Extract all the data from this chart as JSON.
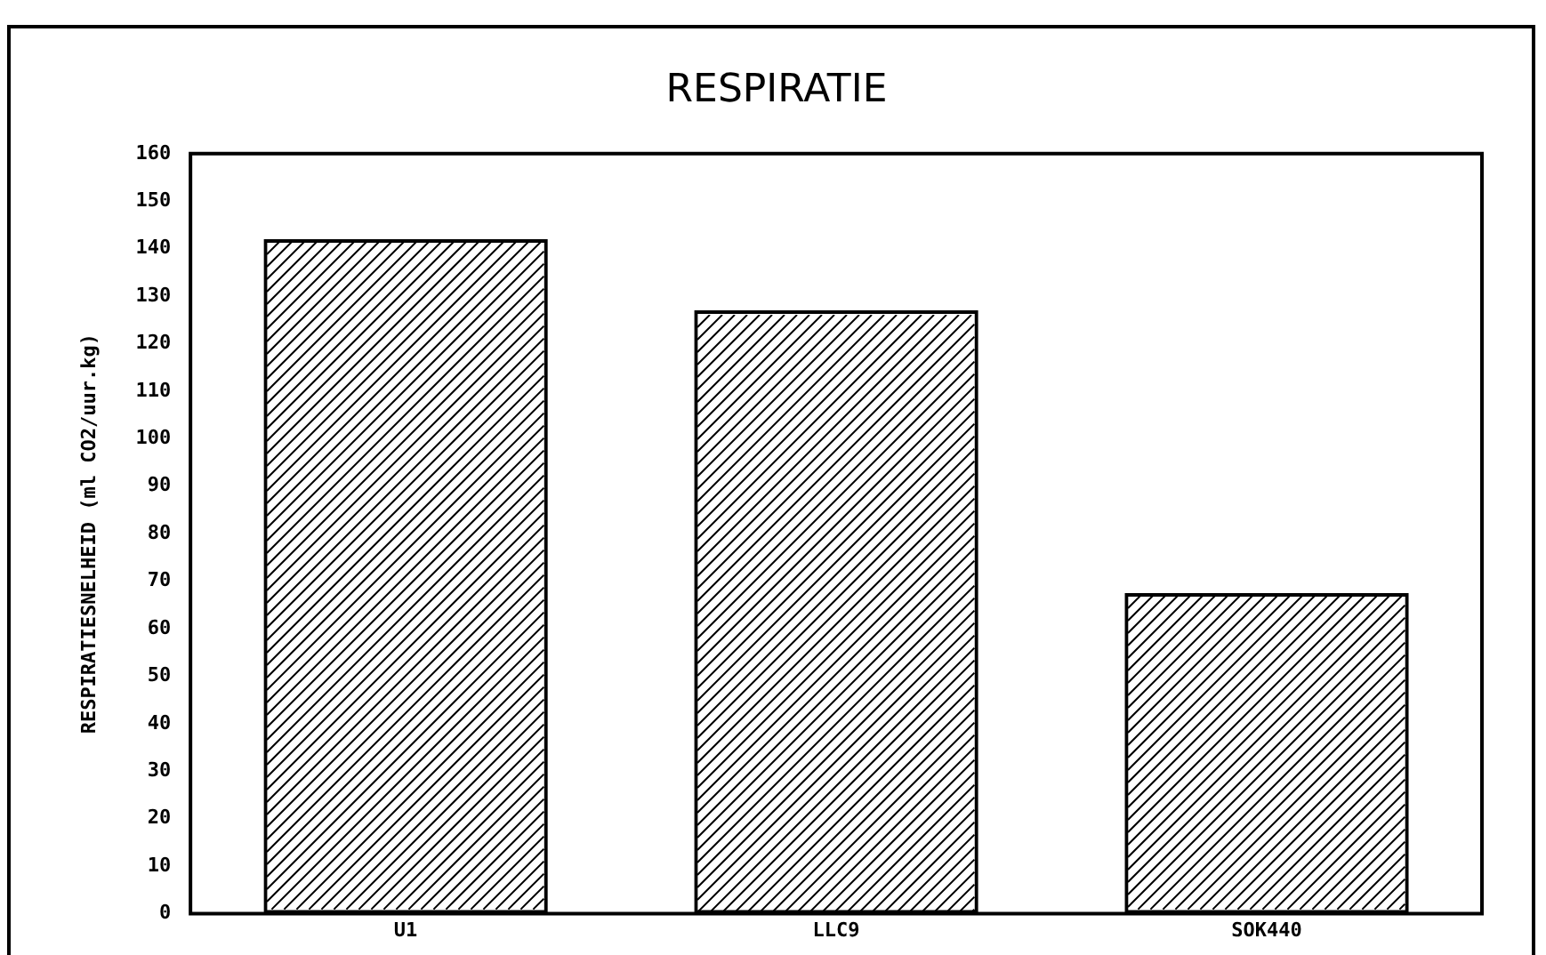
{
  "chart_data": {
    "type": "bar",
    "title": "RESPIRATIE",
    "ylabel": "RESPIRATIESNELHEID (ml CO2/uur.kg)",
    "categories": [
      "U1",
      "LLC9",
      "SOK440"
    ],
    "values": [
      142,
      127,
      67.5
    ],
    "color": "#000000",
    "ylim": [
      0,
      160
    ],
    "yticks": [
      0,
      10,
      20,
      30,
      40,
      50,
      60,
      70,
      80,
      90,
      100,
      110,
      120,
      130,
      140,
      150,
      160
    ],
    "grid": false,
    "legend": false
  }
}
